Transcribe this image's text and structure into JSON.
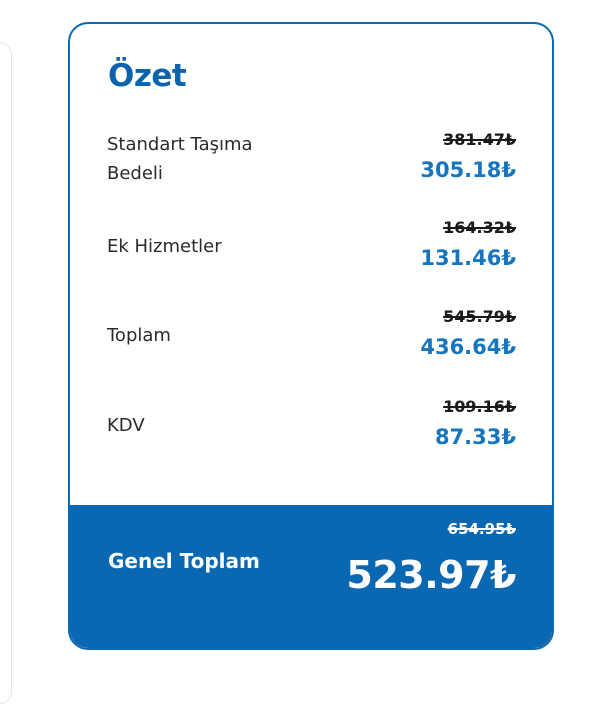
{
  "summary": {
    "title": "Özet",
    "rows": [
      {
        "label": "Standart Taşıma Bedeli",
        "old_price": "381.47₺",
        "new_price": "305.18₺"
      },
      {
        "label": "Ek Hizmetler",
        "old_price": "164.32₺",
        "new_price": "131.46₺"
      },
      {
        "label": "Toplam",
        "old_price": "545.79₺",
        "new_price": "436.64₺"
      },
      {
        "label": "KDV",
        "old_price": "109.16₺",
        "new_price": "87.33₺"
      }
    ],
    "grand_total": {
      "label": "Genel Toplam",
      "old_price": "654.95₺",
      "new_price": "523.97₺"
    }
  },
  "colors": {
    "accent": "#0a67b1",
    "price_blue": "#1675be",
    "text": "#2b2b2b"
  }
}
